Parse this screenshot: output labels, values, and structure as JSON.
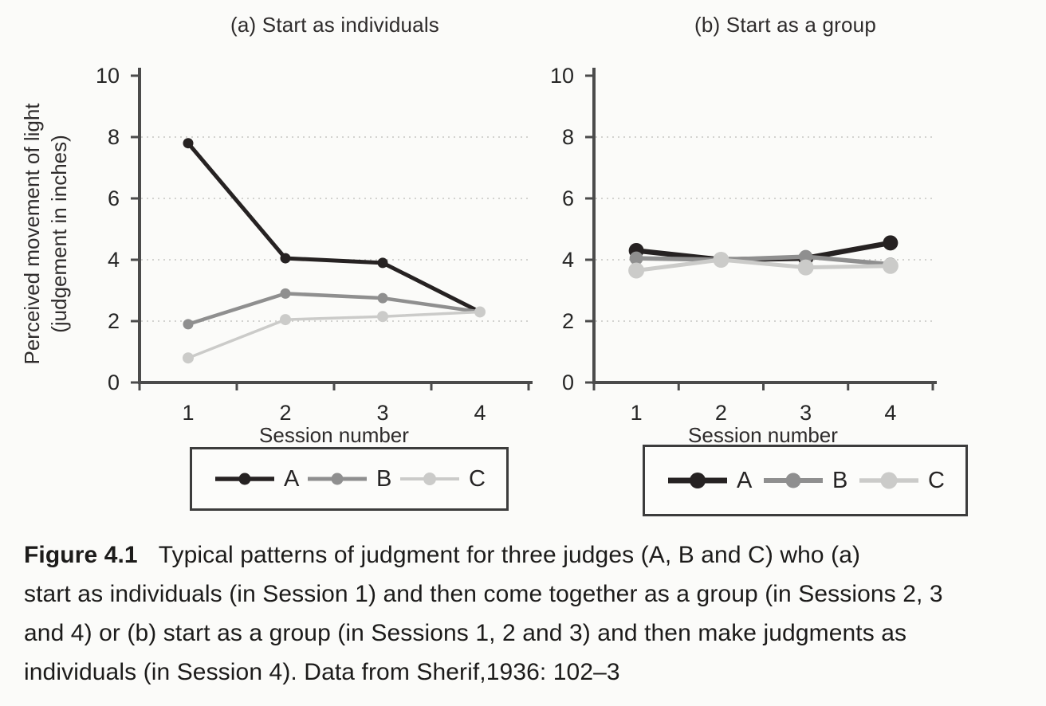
{
  "figure": {
    "caption": {
      "label": "Figure 4.1",
      "lines": [
        "Typical patterns of judgment for three judges (A, B and C) who (a)",
        "start as individuals (in Session 1) and then come together as a group (in Sessions 2, 3",
        "and 4) or (b) start as a group (in Sessions 1, 2 and 3) and then make judgments as",
        "individuals (in Session 4). Data from Sherif,1936: 102–3"
      ]
    }
  },
  "y_axis_label": {
    "line1": "Perceived movement of light",
    "line2": "(judgement in inches)"
  },
  "colors": {
    "judge_a": "#262222",
    "judge_b": "#8f8f8f",
    "judge_c": "#cbcbc9",
    "axis": "#4b4b4b",
    "gridline": "#c6c6c3",
    "page_background": "#fbfbf9"
  },
  "chart_data": [
    {
      "type": "line",
      "title": "(a) Start as individuals",
      "categories": [
        "1",
        "2",
        "3",
        "4"
      ],
      "series": [
        {
          "name": "A",
          "color": "#262222",
          "values": [
            7.8,
            4.05,
            3.9,
            2.3
          ]
        },
        {
          "name": "B",
          "color": "#8f8f8f",
          "values": [
            1.9,
            2.9,
            2.75,
            2.3
          ]
        },
        {
          "name": "C",
          "color": "#cbcbc9",
          "values": [
            0.8,
            2.05,
            2.15,
            2.3
          ]
        }
      ],
      "xlabel": "Session number",
      "ylabel": "Perceived movement of light (judgement in inches)",
      "ylim": [
        0,
        10
      ],
      "yticks": [
        0,
        2,
        4,
        6,
        8,
        10
      ],
      "gridlines": [
        2,
        4,
        6,
        8
      ],
      "grid": "dotted horizontal",
      "legend_position": "bottom-box",
      "legend": [
        "A",
        "B",
        "C"
      ]
    },
    {
      "type": "line",
      "title": "(b) Start as a group",
      "categories": [
        "1",
        "2",
        "3",
        "4"
      ],
      "series": [
        {
          "name": "A",
          "color": "#262222",
          "values": [
            4.3,
            4.0,
            4.05,
            4.55
          ]
        },
        {
          "name": "B",
          "color": "#8f8f8f",
          "values": [
            4.05,
            4.0,
            4.1,
            3.85
          ]
        },
        {
          "name": "C",
          "color": "#cbcbc9",
          "values": [
            3.65,
            4.0,
            3.75,
            3.8
          ]
        }
      ],
      "xlabel": "Session number",
      "ylabel": "Perceived movement of light (judgement in inches)",
      "ylim": [
        0,
        10
      ],
      "yticks": [
        0,
        2,
        4,
        6,
        8,
        10
      ],
      "gridlines": [
        2,
        4,
        6,
        8
      ],
      "grid": "dotted horizontal",
      "legend_position": "bottom-box",
      "legend": [
        "A",
        "B",
        "C"
      ]
    }
  ]
}
